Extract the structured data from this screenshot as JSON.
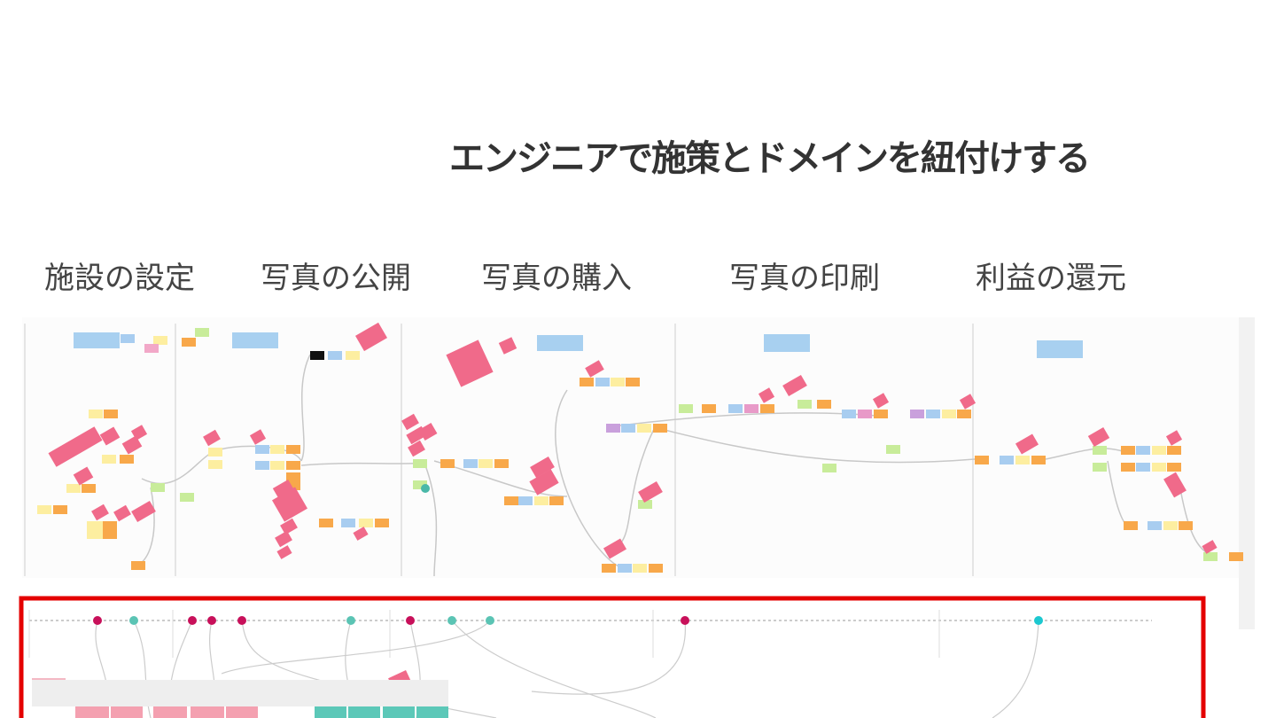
{
  "header": {
    "title": "エンジニアで施策とドメインを紐付けする"
  },
  "sections": [
    "施設の設定",
    "写真の公開",
    "写真の購入",
    "写真の印刷",
    "利益の還元"
  ]
}
